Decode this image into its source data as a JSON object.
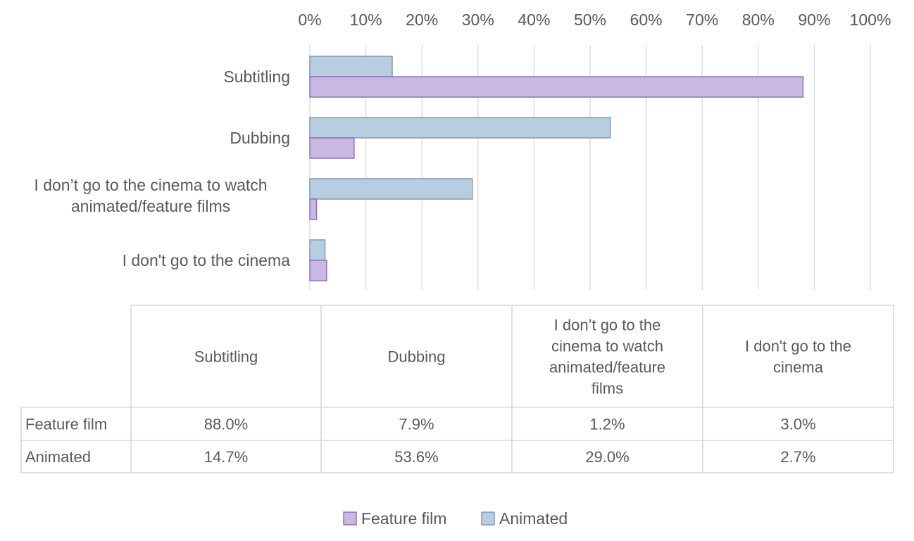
{
  "colors": {
    "feature": "#c9b8e2",
    "feature_stroke": "#8e72b8",
    "animated": "#b9cde0",
    "animated_stroke": "#7f9bbb",
    "grid": "#d9d9d9",
    "text": "#595959"
  },
  "chart_data": {
    "type": "bar",
    "orientation": "horizontal",
    "categories": [
      "Subtitling",
      "Dubbing",
      "I don’t go to the cinema to watch animated/feature films",
      "I don't go to the cinema"
    ],
    "category_lines": [
      [
        "Subtitling"
      ],
      [
        "Dubbing"
      ],
      [
        "I don’t go to the cinema to watch",
        "animated/feature films"
      ],
      [
        "I don't go to the cinema"
      ]
    ],
    "table_header_lines": [
      [
        "Subtitling"
      ],
      [
        "Dubbing"
      ],
      [
        "I don’t go to the",
        "cinema to watch",
        "animated/feature",
        "films"
      ],
      [
        "I don't go to the",
        "cinema"
      ]
    ],
    "series": [
      {
        "name": "Feature film",
        "values": [
          88.0,
          7.9,
          1.2,
          3.0
        ],
        "labels": [
          "88.0%",
          "7.9%",
          "1.2%",
          "3.0%"
        ]
      },
      {
        "name": "Animated",
        "values": [
          14.7,
          53.6,
          29.0,
          2.7
        ],
        "labels": [
          "14.7%",
          "53.6%",
          "29.0%",
          "2.7%"
        ]
      }
    ],
    "xlim": [
      0,
      100
    ],
    "x_ticks": [
      "0%",
      "10%",
      "20%",
      "30%",
      "40%",
      "50%",
      "60%",
      "70%",
      "80%",
      "90%",
      "100%"
    ],
    "grid": true,
    "x_axis_position": "top",
    "data_table": true,
    "legend": [
      "Feature film",
      "Animated"
    ],
    "legend_position": "bottom"
  }
}
